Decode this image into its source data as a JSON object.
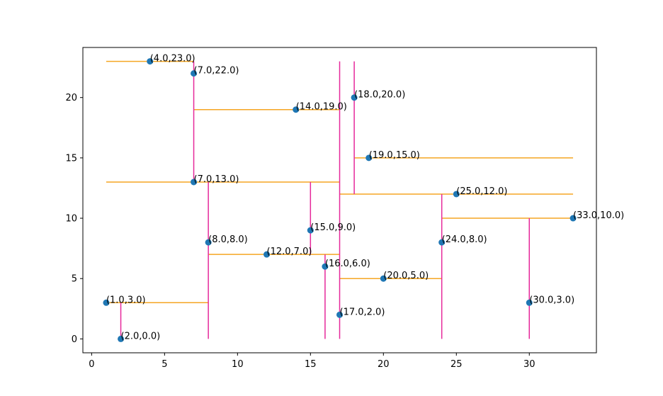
{
  "chart_data": {
    "type": "scatter",
    "title": "",
    "xlabel": "",
    "ylabel": "",
    "xlim": [
      -0.6,
      34.6
    ],
    "ylim": [
      -1.15,
      24.15
    ],
    "xticks": [
      0,
      5,
      10,
      15,
      20,
      25,
      30
    ],
    "yticks": [
      0,
      5,
      10,
      15,
      20
    ],
    "grid": false,
    "point_color": "#1f77b4",
    "points": [
      {
        "x": 4,
        "y": 23,
        "label": "(4.0,23.0)"
      },
      {
        "x": 7,
        "y": 22,
        "label": "(7.0,22.0)"
      },
      {
        "x": 14,
        "y": 19,
        "label": "(14.0,19.0)"
      },
      {
        "x": 18,
        "y": 20,
        "label": "(18.0,20.0)"
      },
      {
        "x": 19,
        "y": 15,
        "label": "(19.0,15.0)"
      },
      {
        "x": 7,
        "y": 13,
        "label": "(7.0,13.0)"
      },
      {
        "x": 25,
        "y": 12,
        "label": "(25.0,12.0)"
      },
      {
        "x": 33,
        "y": 10,
        "label": "(33.0,10.0)"
      },
      {
        "x": 8,
        "y": 8,
        "label": "(8.0,8.0)"
      },
      {
        "x": 15,
        "y": 9,
        "label": "(15.0,9.0)"
      },
      {
        "x": 24,
        "y": 8,
        "label": "(24.0,8.0)"
      },
      {
        "x": 12,
        "y": 7,
        "label": "(12.0,7.0)"
      },
      {
        "x": 16,
        "y": 6,
        "label": "(16.0,6.0)"
      },
      {
        "x": 20,
        "y": 5,
        "label": "(20.0,5.0)"
      },
      {
        "x": 1,
        "y": 3,
        "label": "(1.0,3.0)"
      },
      {
        "x": 30,
        "y": 3,
        "label": "(30.0,3.0)"
      },
      {
        "x": 17,
        "y": 2,
        "label": "(17.0,2.0)"
      },
      {
        "x": 2,
        "y": 0,
        "label": "(2.0,0.0)"
      }
    ],
    "horizontal_color": "#f5a623",
    "horizontal_segments": [
      {
        "y": 23,
        "x1": 1,
        "x2": 7
      },
      {
        "y": 19,
        "x1": 7,
        "x2": 17
      },
      {
        "y": 15,
        "x1": 18,
        "x2": 33
      },
      {
        "y": 13,
        "x1": 1,
        "x2": 17
      },
      {
        "y": 12,
        "x1": 17,
        "x2": 33
      },
      {
        "y": 10,
        "x1": 24,
        "x2": 33
      },
      {
        "y": 7,
        "x1": 8,
        "x2": 17
      },
      {
        "y": 5,
        "x1": 17,
        "x2": 24
      },
      {
        "y": 3,
        "x1": 1,
        "x2": 8
      }
    ],
    "vertical_color": "#e6299b",
    "vertical_segments": [
      {
        "x": 7,
        "y1": 13,
        "y2": 23
      },
      {
        "x": 17,
        "y1": 0,
        "y2": 23
      },
      {
        "x": 18,
        "y1": 12,
        "y2": 23
      },
      {
        "x": 8,
        "y1": 0,
        "y2": 13
      },
      {
        "x": 15,
        "y1": 7,
        "y2": 13
      },
      {
        "x": 24,
        "y1": 0,
        "y2": 12
      },
      {
        "x": 30,
        "y1": 0,
        "y2": 10
      },
      {
        "x": 16,
        "y1": 0,
        "y2": 7
      },
      {
        "x": 2,
        "y1": 0,
        "y2": 3
      }
    ]
  }
}
